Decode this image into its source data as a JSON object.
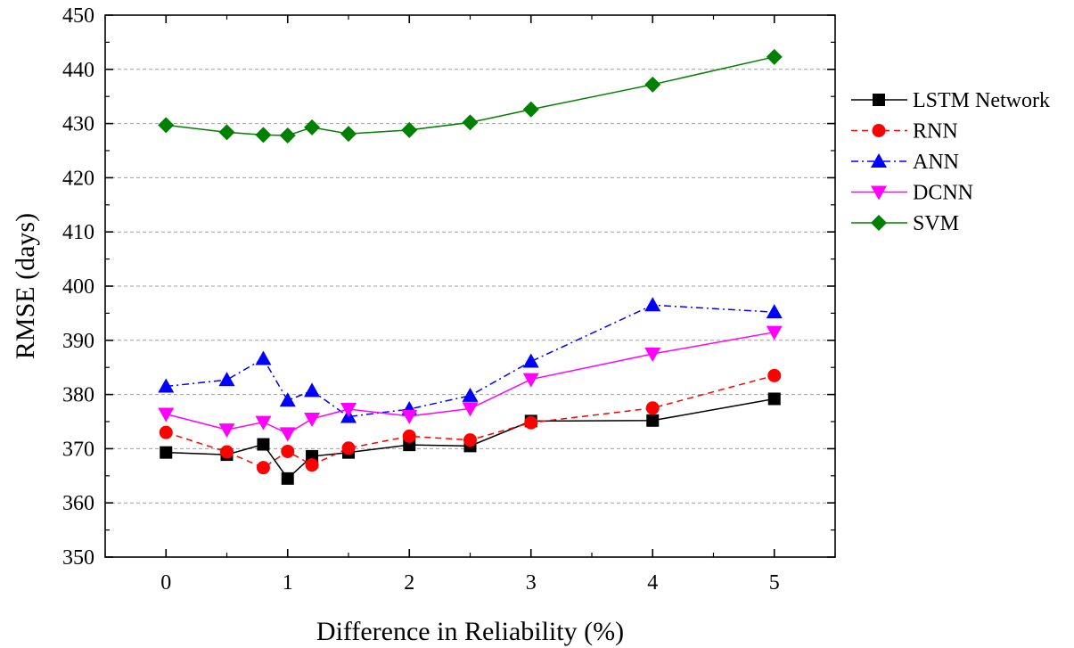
{
  "chart_data": {
    "type": "line",
    "title": "",
    "xlabel": "Difference in Reliability (%)",
    "ylabel": "RMSE (days)",
    "xlim": [
      -0.5,
      5.5
    ],
    "ylim": [
      350,
      450
    ],
    "xticks": [
      0,
      1,
      2,
      3,
      4,
      5
    ],
    "yticks": [
      350,
      360,
      370,
      380,
      390,
      400,
      410,
      420,
      430,
      440,
      450
    ],
    "grid": "horizontal dashed",
    "legend_position": "right",
    "x": [
      0,
      0.5,
      0.8,
      1,
      1.2,
      1.5,
      2,
      2.5,
      3,
      4,
      5
    ],
    "series": [
      {
        "name": "LSTM Network",
        "color": "#000000",
        "marker": "square",
        "dash": "solid",
        "values": [
          369.3,
          368.9,
          370.8,
          364.5,
          368.6,
          369.3,
          370.7,
          370.5,
          375.1,
          375.2,
          379.2
        ]
      },
      {
        "name": "RNN",
        "color": "#ff0000",
        "marker": "circle",
        "dash": "dashed",
        "values": [
          373.0,
          369.4,
          366.5,
          369.5,
          367.0,
          370.1,
          372.3,
          371.6,
          374.8,
          377.5,
          383.5
        ]
      },
      {
        "name": "ANN",
        "color": "#0000ff",
        "marker": "triangle-up",
        "dash": "dash-dot",
        "values": [
          381.5,
          382.7,
          386.6,
          378.9,
          380.7,
          375.9,
          377.3,
          379.8,
          386.1,
          396.5,
          395.2
        ]
      },
      {
        "name": "DCNN",
        "color": "#ff00ff",
        "marker": "triangle-down",
        "dash": "solid",
        "values": [
          376.4,
          373.5,
          374.9,
          372.8,
          375.5,
          377.3,
          376.0,
          377.4,
          382.8,
          387.5,
          391.5
        ]
      },
      {
        "name": "SVM",
        "color": "#008000",
        "marker": "diamond",
        "dash": "solid",
        "values": [
          429.7,
          428.4,
          427.9,
          427.8,
          429.3,
          428.1,
          428.8,
          430.2,
          432.6,
          437.2,
          442.3
        ]
      }
    ]
  }
}
